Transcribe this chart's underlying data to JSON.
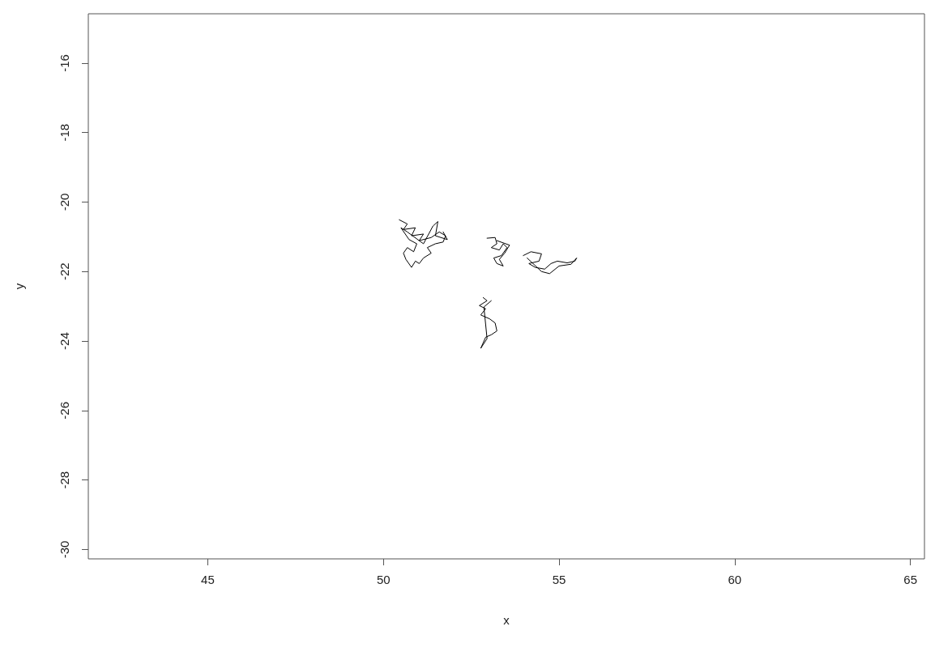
{
  "chart_data": {
    "type": "line",
    "xlabel": "x",
    "ylabel": "y",
    "xlim": [
      41.6,
      65.4
    ],
    "ylim": [
      -30.27,
      -14.58
    ],
    "xticks": [
      45,
      50,
      55,
      60,
      65
    ],
    "yticks": [
      -30,
      -28,
      -26,
      -24,
      -22,
      -20,
      -18,
      -16
    ],
    "grid": false,
    "marker": "none",
    "line_style": "solid",
    "series": [
      {
        "color": "#000000",
        "x": [
          50.45,
          50.68,
          50.57,
          50.91,
          50.8,
          51.14,
          51.02,
          51.36,
          51.59,
          51.77,
          51.7,
          51.48,
          51.25,
          51.36,
          51.14,
          51.02,
          50.91,
          50.8,
          50.64,
          50.57,
          50.68,
          50.86,
          50.95,
          50.73,
          50.5,
          50.68,
          51.14,
          51.41,
          51.55,
          51.48,
          51.82,
          51.7
        ],
        "values": [
          -20.51,
          -20.63,
          -20.79,
          -20.74,
          -20.97,
          -20.92,
          -21.11,
          -21.02,
          -20.86,
          -20.97,
          -21.15,
          -21.2,
          -21.31,
          -21.47,
          -21.61,
          -21.77,
          -21.7,
          -21.88,
          -21.65,
          -21.47,
          -21.31,
          -21.43,
          -21.2,
          -21.08,
          -20.74,
          -20.86,
          -21.2,
          -20.69,
          -20.56,
          -20.97,
          -21.08,
          -20.86
        ]
      },
      {
        "color": "#000000",
        "x": [
          52.95,
          53.18,
          53.23,
          53.07,
          53.3,
          53.41,
          53.52,
          53.36,
          53.14,
          53.23,
          53.41,
          53.3,
          53.45,
          53.59,
          53.23
        ],
        "values": [
          -21.04,
          -21.02,
          -21.2,
          -21.31,
          -21.38,
          -21.2,
          -21.31,
          -21.54,
          -21.61,
          -21.77,
          -21.84,
          -21.65,
          -21.47,
          -21.24,
          -21.11
        ]
      },
      {
        "color": "#000000",
        "x": [
          53.98,
          54.2,
          54.5,
          54.43,
          54.14,
          54.32,
          54.59,
          54.77,
          54.95,
          55.23,
          55.45,
          55.5,
          55.34,
          55.0,
          54.73,
          54.5,
          54.09
        ],
        "values": [
          -21.54,
          -21.43,
          -21.49,
          -21.7,
          -21.77,
          -21.88,
          -21.93,
          -21.77,
          -21.7,
          -21.75,
          -21.7,
          -21.61,
          -21.79,
          -21.84,
          -22.06,
          -22.0,
          -21.61
        ]
      },
      {
        "color": "#000000",
        "x": [
          52.84,
          52.95,
          52.73,
          52.91,
          52.77,
          53.02,
          53.18,
          53.23,
          53.07,
          52.91,
          52.84,
          52.77,
          52.95,
          52.86,
          53.07
        ],
        "values": [
          -22.75,
          -22.84,
          -22.98,
          -23.07,
          -23.25,
          -23.36,
          -23.48,
          -23.71,
          -23.82,
          -23.89,
          -24.05,
          -24.21,
          -23.93,
          -23.02,
          -22.84
        ]
      }
    ]
  }
}
